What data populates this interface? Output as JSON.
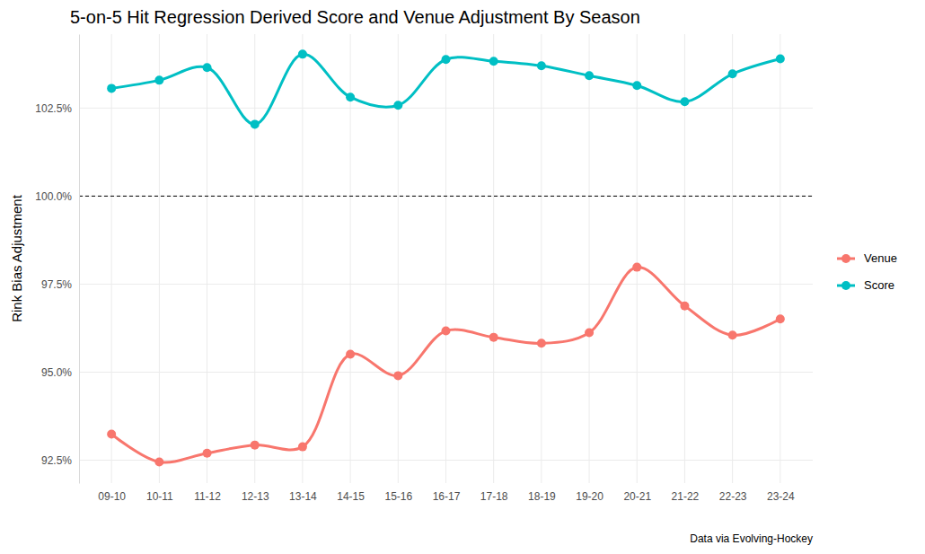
{
  "chart_data": {
    "type": "line",
    "title": "5-on-5 Hit Regression Derived Score and Venue Adjustment By Season",
    "y_label": "Rink Bias Adjustment",
    "caption": "Data via Evolving-Hockey",
    "categories": [
      "09-10",
      "10-11",
      "11-12",
      "12-13",
      "13-14",
      "14-15",
      "15-16",
      "16-17",
      "17-18",
      "18-19",
      "19-20",
      "20-21",
      "21-22",
      "22-23",
      "23-24"
    ],
    "series": [
      {
        "name": "Venue",
        "color": "#F8766D",
        "marker": "circle",
        "line_style": "solid",
        "values": [
          93.24,
          92.45,
          92.7,
          92.93,
          92.88,
          95.51,
          94.9,
          96.17,
          95.99,
          95.82,
          96.12,
          97.98,
          96.88,
          96.05,
          96.51
        ]
      },
      {
        "name": "Score",
        "color": "#00BFC4",
        "marker": "circle",
        "line_style": "solid",
        "values": [
          103.06,
          103.29,
          103.65,
          102.04,
          104.03,
          102.81,
          102.58,
          103.88,
          103.83,
          103.7,
          103.42,
          103.14,
          102.68,
          103.47,
          103.9
        ]
      }
    ],
    "ylim": [
      91.85,
      104.6
    ],
    "yticks": [
      {
        "value": 92.5,
        "label": "92.5%"
      },
      {
        "value": 95,
        "label": "95.0%"
      },
      {
        "value": 97.5,
        "label": "97.5%"
      },
      {
        "value": 100,
        "label": "100.0%"
      },
      {
        "value": 102.5,
        "label": "102.5%"
      }
    ],
    "hline": 100,
    "grid": true,
    "legend": "right"
  }
}
